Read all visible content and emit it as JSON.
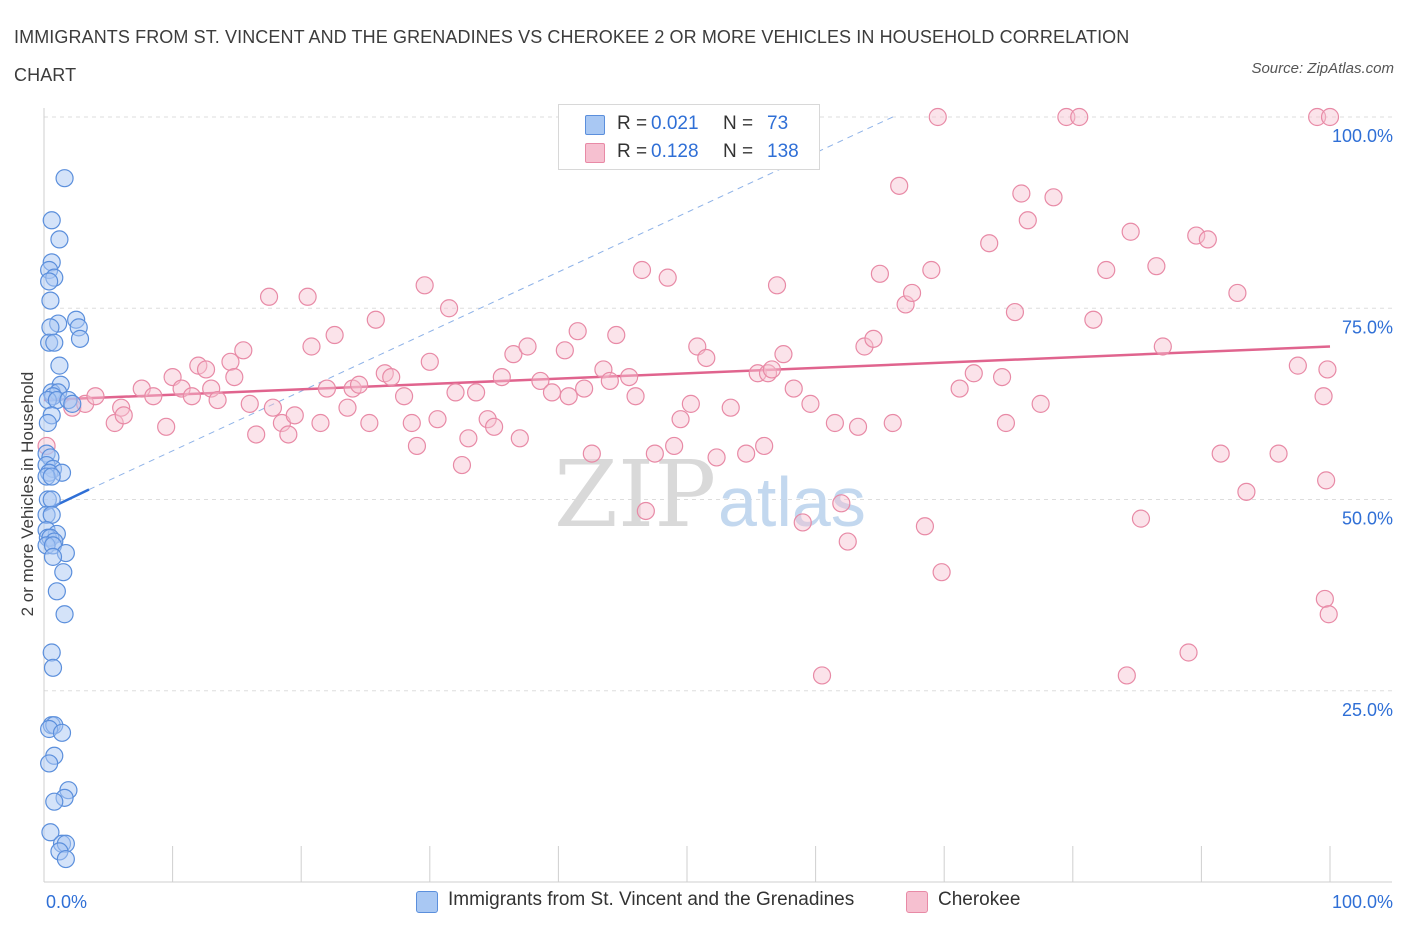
{
  "title": "IMMIGRANTS FROM ST. VINCENT AND THE GRENADINES VS CHEROKEE 2 OR MORE VEHICLES IN HOUSEHOLD CORRELATION CHART",
  "source": "Source: ZipAtlas.com",
  "watermark": {
    "zip": "ZIP",
    "atlas": "atlas"
  },
  "legend_top": {
    "rows": [
      {
        "r_label": "R =",
        "r_value": "0.021",
        "n_label": "N =",
        "n_value": "73"
      },
      {
        "r_label": "R =",
        "r_value": "0.128",
        "n_label": "N =",
        "n_value": "138"
      }
    ]
  },
  "colors": {
    "blue_fill": "#a9c8f3",
    "blue_stroke": "#5b8fdc",
    "blue_line": "#2f6fd6",
    "pink_fill": "#f6c0d0",
    "pink_stroke": "#e88aa6",
    "pink_line": "#e0648e",
    "axis_text": "#2f6fd6",
    "grid": "#dddddd"
  },
  "chart_data": {
    "type": "scatter",
    "title": "IMMIGRANTS FROM ST. VINCENT AND THE GRENADINES VS CHEROKEE 2 OR MORE VEHICLES IN HOUSEHOLD CORRELATION CHART",
    "xlabel": "",
    "ylabel": "2 or more Vehicles in Household",
    "xlim": [
      0,
      100
    ],
    "ylim": [
      0,
      100
    ],
    "x_tick_labels": [
      "0.0%",
      "100.0%"
    ],
    "y_tick_labels": [
      "25.0%",
      "50.0%",
      "75.0%",
      "100.0%"
    ],
    "y_ticks": [
      25,
      50,
      75,
      100
    ],
    "grid": true,
    "legend_position": "bottom",
    "series": [
      {
        "name": "Immigrants from St. Vincent and the Grenadines",
        "color": "#a9c8f3",
        "r": 0.021,
        "n": 73,
        "trend": {
          "x": [
            0,
            3.5
          ],
          "y": [
            48.5,
            51.3
          ]
        },
        "trend_extended": {
          "x": [
            3.5,
            66
          ],
          "y": [
            51.3,
            100
          ]
        },
        "points": [
          [
            1.6,
            92
          ],
          [
            0.6,
            86.5
          ],
          [
            1.2,
            84
          ],
          [
            0.6,
            81
          ],
          [
            0.4,
            80
          ],
          [
            0.8,
            79
          ],
          [
            0.4,
            78.5
          ],
          [
            0.5,
            76
          ],
          [
            2.5,
            73.5
          ],
          [
            1.1,
            73
          ],
          [
            0.5,
            72.5
          ],
          [
            2.7,
            72.5
          ],
          [
            2.8,
            71
          ],
          [
            0.4,
            70.5
          ],
          [
            0.8,
            70.5
          ],
          [
            1.2,
            67.5
          ],
          [
            1.3,
            65
          ],
          [
            0.6,
            64
          ],
          [
            1.1,
            64
          ],
          [
            0.7,
            63.5
          ],
          [
            0.3,
            63
          ],
          [
            1.0,
            63
          ],
          [
            1.9,
            63
          ],
          [
            2.2,
            62.5
          ],
          [
            0.6,
            61
          ],
          [
            0.3,
            60
          ],
          [
            0.2,
            56
          ],
          [
            0.5,
            55.5
          ],
          [
            0.2,
            54.5
          ],
          [
            0.7,
            54
          ],
          [
            0.4,
            53.5
          ],
          [
            1.4,
            53.5
          ],
          [
            0.2,
            53
          ],
          [
            0.6,
            53
          ],
          [
            0.3,
            50
          ],
          [
            0.6,
            50
          ],
          [
            0.2,
            48
          ],
          [
            0.6,
            48
          ],
          [
            0.2,
            46
          ],
          [
            1.0,
            45.5
          ],
          [
            0.3,
            45
          ],
          [
            0.5,
            45
          ],
          [
            0.8,
            44.5
          ],
          [
            0.2,
            44
          ],
          [
            0.7,
            44
          ],
          [
            1.7,
            43
          ],
          [
            0.7,
            42.5
          ],
          [
            1.5,
            40.5
          ],
          [
            1.0,
            38
          ],
          [
            1.6,
            35
          ],
          [
            0.6,
            30
          ],
          [
            0.7,
            28
          ],
          [
            0.6,
            20.5
          ],
          [
            0.8,
            20.5
          ],
          [
            0.4,
            20
          ],
          [
            1.4,
            19.5
          ],
          [
            0.8,
            16.5
          ],
          [
            0.4,
            15.5
          ],
          [
            1.9,
            12
          ],
          [
            1.6,
            11
          ],
          [
            0.8,
            10.5
          ],
          [
            0.5,
            6.5
          ],
          [
            1.4,
            5
          ],
          [
            1.7,
            5
          ],
          [
            1.2,
            4
          ],
          [
            1.7,
            3
          ]
        ]
      },
      {
        "name": "Cherokee",
        "color": "#f6c0d0",
        "r": 0.128,
        "n": 138,
        "trend": {
          "x": [
            0,
            100
          ],
          "y": [
            63,
            70
          ]
        },
        "points": [
          [
            0.2,
            57
          ],
          [
            2.2,
            62
          ],
          [
            3.2,
            62.5
          ],
          [
            4,
            63.5
          ],
          [
            5.5,
            60
          ],
          [
            6,
            62
          ],
          [
            6.2,
            61
          ],
          [
            7.6,
            64.5
          ],
          [
            8.5,
            63.5
          ],
          [
            9.5,
            59.5
          ],
          [
            10,
            66
          ],
          [
            10.7,
            64.5
          ],
          [
            11.5,
            63.5
          ],
          [
            12,
            67.5
          ],
          [
            12.6,
            67
          ],
          [
            13,
            64.5
          ],
          [
            13.5,
            63
          ],
          [
            14.5,
            68
          ],
          [
            14.8,
            66
          ],
          [
            15.5,
            69.5
          ],
          [
            16,
            62.5
          ],
          [
            16.5,
            58.5
          ],
          [
            17.5,
            76.5
          ],
          [
            17.8,
            62
          ],
          [
            18.5,
            60
          ],
          [
            19,
            58.5
          ],
          [
            19.5,
            61
          ],
          [
            20.5,
            76.5
          ],
          [
            20.8,
            70
          ],
          [
            21.5,
            60
          ],
          [
            22,
            64.5
          ],
          [
            22.6,
            71.5
          ],
          [
            23.6,
            62
          ],
          [
            24,
            64.5
          ],
          [
            24.5,
            65
          ],
          [
            25.3,
            60
          ],
          [
            25.8,
            73.5
          ],
          [
            26.5,
            66.5
          ],
          [
            27,
            66
          ],
          [
            28,
            63.5
          ],
          [
            28.6,
            60
          ],
          [
            29,
            57
          ],
          [
            29.6,
            78
          ],
          [
            30,
            68
          ],
          [
            30.6,
            60.5
          ],
          [
            31.5,
            75
          ],
          [
            32,
            64
          ],
          [
            32.5,
            54.5
          ],
          [
            33,
            58
          ],
          [
            33.6,
            64
          ],
          [
            34.5,
            60.5
          ],
          [
            35,
            59.5
          ],
          [
            35.6,
            66
          ],
          [
            36.5,
            69
          ],
          [
            37,
            58
          ],
          [
            37.6,
            70
          ],
          [
            38.6,
            65.5
          ],
          [
            39.5,
            64
          ],
          [
            40.5,
            69.5
          ],
          [
            40.8,
            63.5
          ],
          [
            41.5,
            72
          ],
          [
            42,
            64.5
          ],
          [
            42.6,
            56
          ],
          [
            43.5,
            67
          ],
          [
            44,
            65.5
          ],
          [
            44.5,
            71.5
          ],
          [
            45.5,
            66
          ],
          [
            46,
            63.5
          ],
          [
            46.5,
            80
          ],
          [
            46.8,
            48.5
          ],
          [
            47.5,
            56
          ],
          [
            48.5,
            79
          ],
          [
            49,
            57
          ],
          [
            49.5,
            60.5
          ],
          [
            50.3,
            62.5
          ],
          [
            50.8,
            70
          ],
          [
            51.5,
            68.5
          ],
          [
            52.3,
            55.5
          ],
          [
            53.4,
            62
          ],
          [
            54.6,
            56
          ],
          [
            55.5,
            66.5
          ],
          [
            56,
            57
          ],
          [
            56.3,
            66.5
          ],
          [
            56.6,
            67
          ],
          [
            57,
            78
          ],
          [
            57.5,
            69
          ],
          [
            58.3,
            64.5
          ],
          [
            59,
            47
          ],
          [
            59.6,
            62.5
          ],
          [
            60.5,
            27
          ],
          [
            61.5,
            60
          ],
          [
            62,
            49.5
          ],
          [
            62.5,
            44.5
          ],
          [
            63.3,
            59.5
          ],
          [
            63.8,
            70
          ],
          [
            64.5,
            71
          ],
          [
            65,
            79.5
          ],
          [
            66,
            60
          ],
          [
            66.5,
            91
          ],
          [
            67,
            75.5
          ],
          [
            67.5,
            77
          ],
          [
            68.5,
            46.5
          ],
          [
            69,
            80
          ],
          [
            69.5,
            100
          ],
          [
            69.8,
            40.5
          ],
          [
            71.2,
            64.5
          ],
          [
            72.3,
            66.5
          ],
          [
            73.5,
            83.5
          ],
          [
            74.5,
            66
          ],
          [
            74.8,
            60
          ],
          [
            75.5,
            74.5
          ],
          [
            76,
            90
          ],
          [
            76.5,
            86.5
          ],
          [
            77.5,
            62.5
          ],
          [
            78.5,
            89.5
          ],
          [
            79.5,
            100
          ],
          [
            80.5,
            100
          ],
          [
            81.6,
            73.5
          ],
          [
            82.6,
            80
          ],
          [
            84.2,
            27
          ],
          [
            84.5,
            85
          ],
          [
            85.3,
            47.5
          ],
          [
            86.5,
            80.5
          ],
          [
            87,
            70
          ],
          [
            89,
            30
          ],
          [
            89.6,
            84.5
          ],
          [
            90.5,
            84
          ],
          [
            91.5,
            56
          ],
          [
            92.8,
            77
          ],
          [
            93.5,
            51
          ],
          [
            96,
            56
          ],
          [
            97.5,
            67.5
          ],
          [
            99,
            100
          ],
          [
            99.5,
            63.5
          ],
          [
            99.6,
            37
          ],
          [
            99.7,
            52.5
          ],
          [
            99.8,
            67
          ],
          [
            99.9,
            35
          ],
          [
            100,
            100
          ]
        ]
      }
    ]
  }
}
